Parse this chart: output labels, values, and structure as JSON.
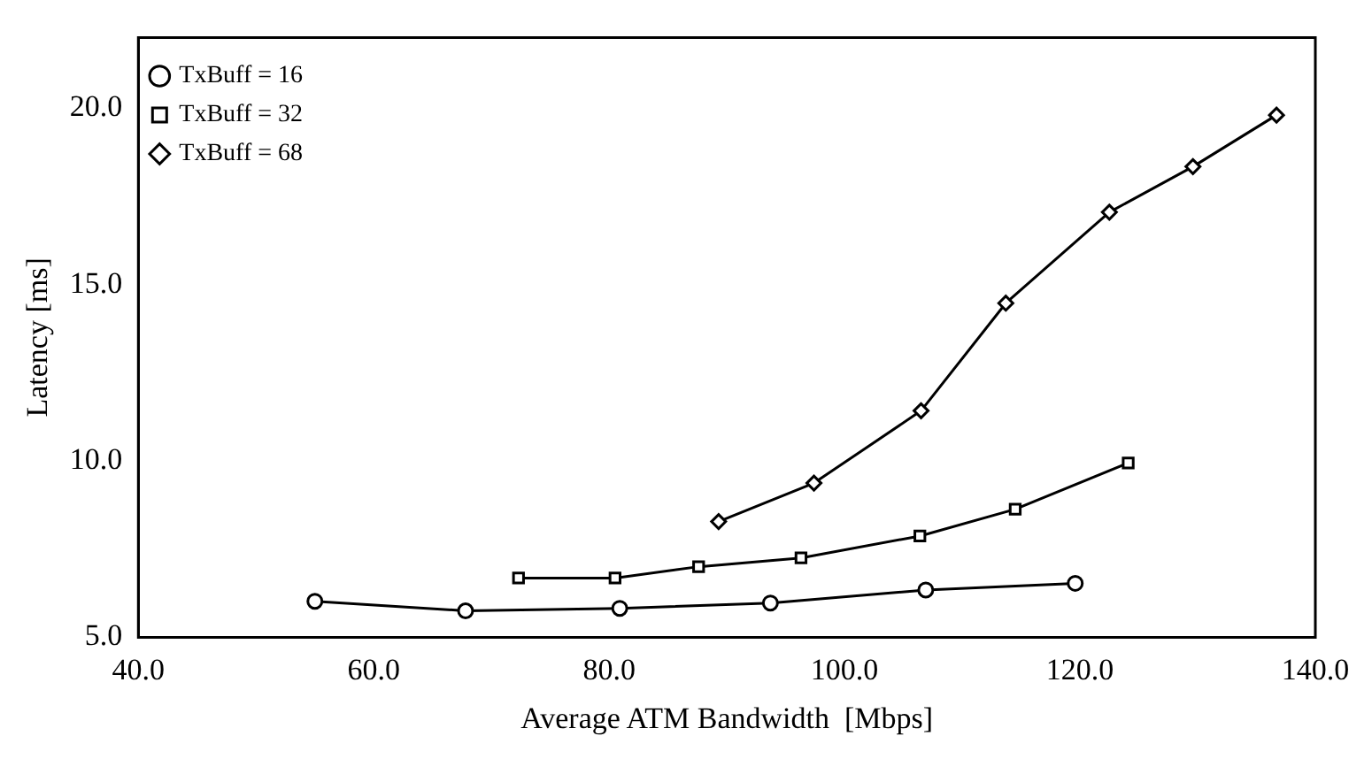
{
  "chart_data": {
    "type": "line",
    "xlabel": "Average ATM Bandwidth  [Mbps]",
    "ylabel": "Latency [ms]",
    "xlim": [
      40,
      140
    ],
    "xticks": [
      {
        "value": 40,
        "label": "40.0"
      },
      {
        "value": 60,
        "label": "60.0"
      },
      {
        "value": 80,
        "label": "80.0"
      },
      {
        "value": 100,
        "label": "100.0"
      },
      {
        "value": 120,
        "label": "120.0"
      },
      {
        "value": 140,
        "label": "140.0"
      }
    ],
    "ylim": [
      5,
      22
    ],
    "yticks": [
      {
        "value": 5,
        "label": "5.0"
      },
      {
        "value": 10,
        "label": "10.0"
      },
      {
        "value": 15,
        "label": "15.0"
      },
      {
        "value": 20,
        "label": "20.0"
      }
    ],
    "grid": false,
    "legend": "top left",
    "line_style": "solid",
    "series": [
      {
        "name": "TxBuff = 16",
        "color": "#000000",
        "marker": "circle",
        "x": [
          55.0,
          67.8,
          80.9,
          93.7,
          106.9,
          119.6
        ],
        "values": [
          6.02,
          5.75,
          5.82,
          5.97,
          6.34,
          6.53
        ]
      },
      {
        "name": "TxBuff = 32",
        "color": "#000000",
        "marker": "square",
        "x": [
          72.3,
          80.5,
          87.6,
          96.3,
          106.4,
          114.5,
          124.1
        ],
        "values": [
          6.68,
          6.68,
          7.0,
          7.25,
          7.87,
          8.63,
          9.94
        ]
      },
      {
        "name": "TxBuff = 68",
        "color": "#000000",
        "marker": "diamond",
        "x": [
          89.3,
          97.4,
          106.5,
          113.7,
          122.5,
          129.6,
          136.7
        ],
        "values": [
          8.28,
          9.37,
          11.42,
          14.47,
          17.05,
          18.34,
          19.8
        ]
      }
    ]
  }
}
